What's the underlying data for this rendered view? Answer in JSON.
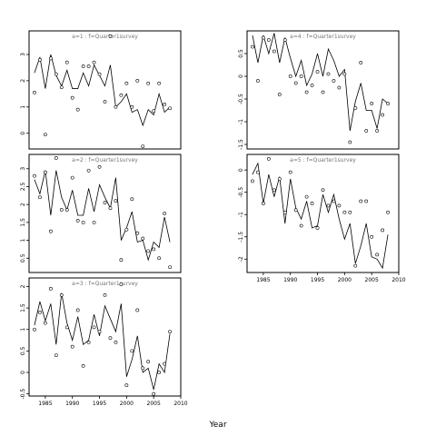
{
  "chart_data": {
    "type": "line",
    "xlabel": "Year",
    "xlim": [
      1982,
      2010
    ],
    "x_ticks": [
      1985,
      1990,
      1995,
      2000,
      2005,
      2010
    ],
    "panels": [
      {
        "id": "p1",
        "strip": "a=1 : f=Quarter1survey",
        "ylim": [
          -0.6,
          3.9
        ],
        "y_ticks": [
          0,
          1,
          2,
          3
        ],
        "line": {
          "x": [
            1983,
            1984,
            1985,
            1986,
            1987,
            1988,
            1989,
            1990,
            1991,
            1992,
            1993,
            1994,
            1995,
            1996,
            1997,
            1998,
            1999,
            2000,
            2001,
            2002,
            2003,
            2004,
            2005,
            2006,
            2007,
            2008
          ],
          "y": [
            2.3,
            2.9,
            1.7,
            3.0,
            2.2,
            1.8,
            2.4,
            1.7,
            1.7,
            2.3,
            1.8,
            2.6,
            2.2,
            1.8,
            2.6,
            1.0,
            1.2,
            1.5,
            0.8,
            0.9,
            0.3,
            0.9,
            0.7,
            1.5,
            0.8,
            1.0
          ]
        },
        "points": {
          "x": [
            1983,
            1984,
            1985,
            1986,
            1987,
            1988,
            1989,
            1990,
            1991,
            1992,
            1993,
            1994,
            1995,
            1996,
            1997,
            1998,
            1999,
            2000,
            2001,
            2002,
            2003,
            2004,
            2005,
            2006,
            2007,
            2008
          ],
          "y": [
            1.55,
            2.8,
            -0.05,
            2.85,
            2.25,
            1.75,
            2.7,
            1.35,
            0.9,
            2.55,
            2.55,
            2.7,
            2.25,
            1.2,
            3.7,
            1.0,
            1.45,
            1.9,
            1.0,
            2.0,
            -0.5,
            1.9,
            0.85,
            1.9,
            1.1,
            0.95
          ]
        }
      },
      {
        "id": "p2",
        "strip": "a=2 : f=Quarter1survey",
        "ylim": [
          0.1,
          3.4
        ],
        "y_ticks": [
          0.5,
          1.0,
          1.5,
          2.0,
          2.5,
          3.0
        ],
        "line": {
          "x": [
            1983,
            1984,
            1985,
            1986,
            1987,
            1988,
            1989,
            1990,
            1991,
            1992,
            1993,
            1994,
            1995,
            1996,
            1997,
            1998,
            1999,
            2000,
            2001,
            2002,
            2003,
            2004,
            2005,
            2006,
            2007,
            2008
          ],
          "y": [
            2.7,
            2.3,
            2.95,
            1.7,
            2.95,
            2.2,
            1.85,
            2.4,
            1.7,
            1.7,
            2.45,
            1.8,
            2.55,
            2.2,
            1.9,
            2.75,
            1.0,
            1.35,
            1.8,
            0.95,
            1.0,
            0.45,
            0.95,
            0.8,
            1.65,
            0.95
          ]
        },
        "points": {
          "x": [
            1983,
            1984,
            1985,
            1986,
            1987,
            1988,
            1989,
            1990,
            1991,
            1992,
            1993,
            1994,
            1995,
            1996,
            1997,
            1998,
            1999,
            2000,
            2001,
            2002,
            2003,
            2004,
            2005,
            2006,
            2007,
            2008
          ],
          "y": [
            2.8,
            2.2,
            2.9,
            1.25,
            3.3,
            1.85,
            1.85,
            2.75,
            1.55,
            1.5,
            2.95,
            1.5,
            3.05,
            2.05,
            1.9,
            2.1,
            0.45,
            1.3,
            2.15,
            1.2,
            1.05,
            0.7,
            0.75,
            0.5,
            1.75,
            0.25
          ]
        }
      },
      {
        "id": "p3",
        "strip": "a=3 : f=Quarter1survey",
        "ylim": [
          -0.55,
          2.2
        ],
        "y_ticks": [
          -0.5,
          0.0,
          0.5,
          1.0,
          1.5,
          2.0
        ],
        "line": {
          "x": [
            1983,
            1984,
            1985,
            1986,
            1987,
            1988,
            1989,
            1990,
            1991,
            1992,
            1993,
            1994,
            1995,
            1996,
            1997,
            1998,
            1999,
            2000,
            2001,
            2002,
            2003,
            2004,
            2005,
            2006,
            2007,
            2008
          ],
          "y": [
            1.1,
            1.65,
            1.2,
            1.6,
            0.65,
            1.85,
            1.15,
            0.75,
            1.3,
            0.65,
            0.75,
            1.35,
            0.85,
            1.55,
            1.25,
            0.95,
            1.6,
            -0.1,
            0.3,
            0.85,
            0.0,
            0.1,
            -0.4,
            0.2,
            0.0,
            0.9
          ]
        },
        "points": {
          "x": [
            1983,
            1984,
            1985,
            1986,
            1987,
            1988,
            1989,
            1990,
            1991,
            1992,
            1993,
            1994,
            1995,
            1996,
            1997,
            1998,
            1999,
            2000,
            2001,
            2002,
            2003,
            2004,
            2005,
            2006,
            2007,
            2008
          ],
          "y": [
            1.0,
            1.4,
            1.15,
            1.95,
            0.4,
            1.8,
            1.05,
            0.6,
            1.45,
            0.15,
            0.7,
            1.05,
            0.95,
            1.8,
            0.8,
            0.7,
            2.05,
            -0.3,
            0.5,
            1.45,
            0.1,
            0.25,
            -0.5,
            0.0,
            0.2,
            0.95
          ]
        }
      },
      {
        "id": "p4",
        "strip": "a=4 : f=Quarter1survey",
        "ylim": [
          -1.6,
          1.0
        ],
        "y_ticks": [
          -1.5,
          -1.0,
          -0.5,
          0.0,
          0.5
        ],
        "line": {
          "x": [
            1983,
            1984,
            1985,
            1986,
            1987,
            1988,
            1989,
            1990,
            1991,
            1992,
            1993,
            1994,
            1995,
            1996,
            1997,
            1998,
            1999,
            2000,
            2001,
            2002,
            2003,
            2004,
            2005,
            2006,
            2007,
            2008
          ],
          "y": [
            0.9,
            0.3,
            0.9,
            0.5,
            0.95,
            0.3,
            0.85,
            0.4,
            0.0,
            0.35,
            -0.2,
            0.05,
            0.5,
            0.0,
            0.6,
            0.35,
            0.0,
            0.15,
            -1.2,
            -0.55,
            -0.15,
            -0.75,
            -0.75,
            -1.15,
            -0.5,
            -0.6
          ]
        },
        "points": {
          "x": [
            1983,
            1984,
            1985,
            1986,
            1987,
            1988,
            1989,
            1990,
            1991,
            1992,
            1993,
            1994,
            1995,
            1996,
            1997,
            1998,
            1999,
            2000,
            2001,
            2002,
            2003,
            2004,
            2005,
            2006,
            2007,
            2008
          ],
          "y": [
            0.65,
            -0.1,
            0.85,
            0.8,
            0.55,
            -0.4,
            0.8,
            0.0,
            -0.15,
            0.0,
            -0.35,
            -0.2,
            0.1,
            -0.35,
            0.05,
            -0.1,
            -0.25,
            0.05,
            -1.45,
            -0.7,
            0.3,
            -1.2,
            -0.6,
            -1.2,
            -0.85,
            -0.6
          ]
        }
      },
      {
        "id": "p5",
        "strip": "a=5 : f=Quarter1survey",
        "ylim": [
          -2.3,
          0.35
        ],
        "y_ticks": [
          -2.0,
          -1.5,
          -1.0,
          -0.5,
          0.0
        ],
        "line": {
          "x": [
            1983,
            1984,
            1985,
            1986,
            1987,
            1988,
            1989,
            1990,
            1991,
            1992,
            1993,
            1994,
            1995,
            1996,
            1997,
            1998,
            1999,
            2000,
            2001,
            2002,
            2003,
            2004,
            2005,
            2006,
            2007,
            2008
          ],
          "y": [
            -0.1,
            0.15,
            -0.75,
            -0.1,
            -0.6,
            -0.15,
            -1.2,
            -0.2,
            -0.85,
            -1.1,
            -0.7,
            -1.3,
            -1.25,
            -0.55,
            -0.95,
            -0.55,
            -1.1,
            -1.55,
            -1.2,
            -2.1,
            -1.7,
            -1.2,
            -1.95,
            -2.0,
            -2.2,
            -1.45
          ]
        },
        "points": {
          "x": [
            1983,
            1984,
            1985,
            1986,
            1987,
            1988,
            1989,
            1990,
            1991,
            1992,
            1993,
            1994,
            1995,
            1996,
            1997,
            1998,
            1999,
            2000,
            2001,
            2002,
            2003,
            2004,
            2005,
            2006,
            2007,
            2008
          ],
          "y": [
            -0.25,
            -0.05,
            -0.75,
            0.25,
            -0.45,
            -0.2,
            -0.95,
            -0.05,
            -0.9,
            -1.25,
            -0.6,
            -0.75,
            -1.3,
            -0.45,
            -0.8,
            -0.7,
            -0.8,
            -0.95,
            -0.95,
            -2.15,
            -0.7,
            -0.7,
            -1.5,
            -1.9,
            -1.35,
            -0.95
          ]
        }
      }
    ]
  }
}
